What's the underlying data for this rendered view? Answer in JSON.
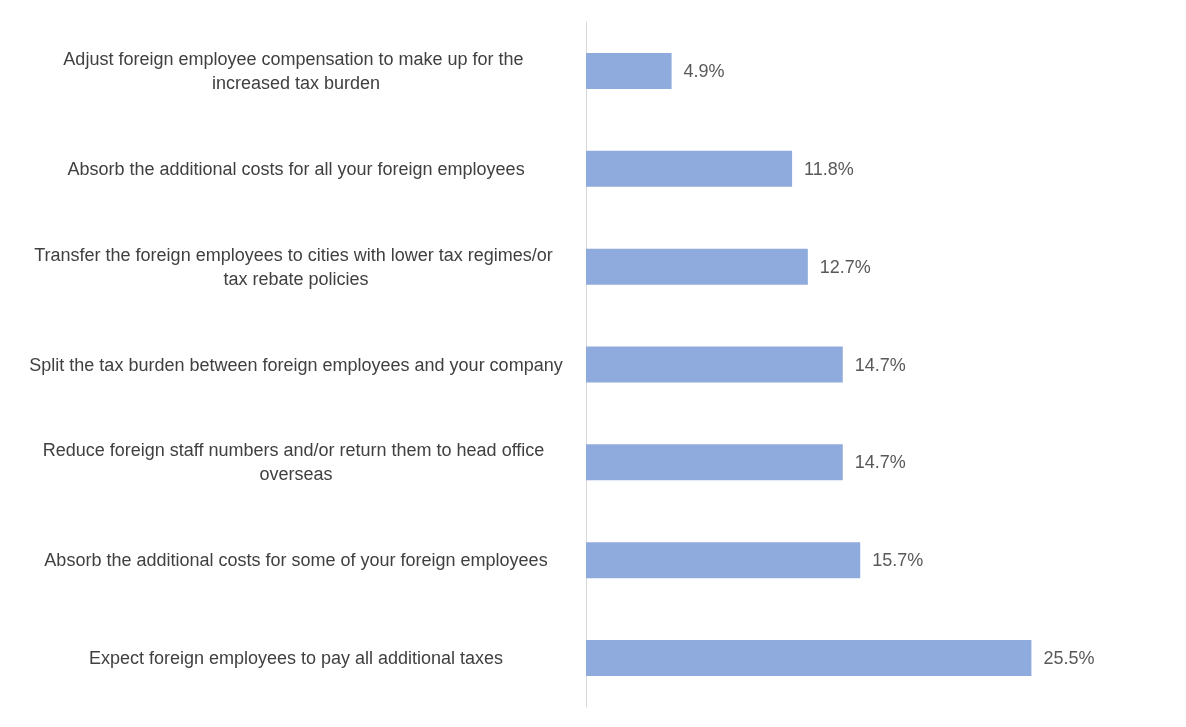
{
  "chart_data": {
    "type": "bar",
    "orientation": "horizontal",
    "categories": [
      "Adjust foreign employee compensation to make up for the increased tax burden",
      "Absorb the additional costs for all your foreign employees",
      "Transfer the foreign employees to cities with lower tax regimes/or tax rebate policies",
      "Split the tax burden between foreign employees and your company",
      "Reduce foreign staff numbers and/or return them to head office overseas",
      "Absorb the additional costs for some of your foreign employees",
      "Expect foreign employees to pay all additional taxes"
    ],
    "values": [
      4.9,
      11.8,
      12.7,
      14.7,
      14.7,
      15.7,
      25.5
    ],
    "value_labels": [
      "4.9%",
      "11.8%",
      "12.7%",
      "14.7%",
      "14.7%",
      "15.7%",
      "25.5%"
    ],
    "color": "#8faadc",
    "tick_labels": "y"
  }
}
